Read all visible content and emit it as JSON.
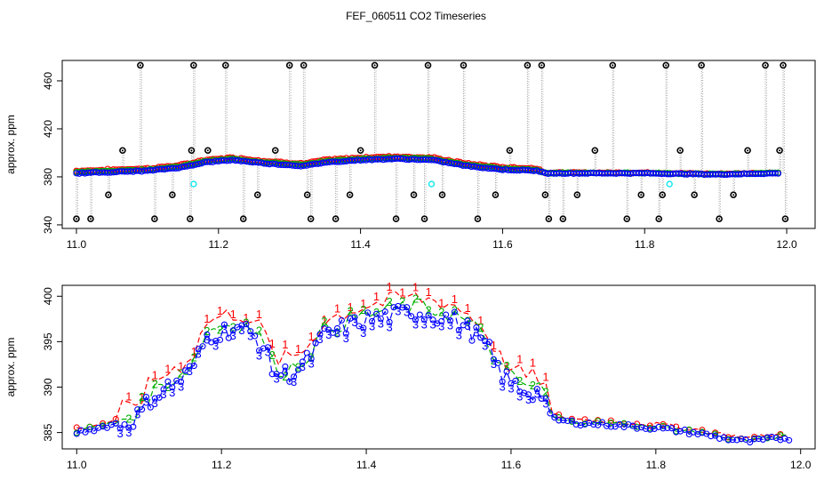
{
  "page_title": "FEF_060511  CO2 Timeseries",
  "chart_data": [
    {
      "type": "scatter",
      "panel": "top",
      "title": "FEF_060511  CO2 Timeseries",
      "xlabel": "",
      "ylabel": "approx. ppm",
      "xlim": [
        10.98,
        12.04
      ],
      "ylim": [
        337,
        477
      ],
      "x_ticks": [
        "11.0",
        "11.2",
        "11.4",
        "11.6",
        "11.8",
        "12.0"
      ],
      "y_ticks": [
        "340",
        "380",
        "420",
        "460"
      ],
      "grid": false,
      "colors": {
        "series1": "#ff0000",
        "series2": "#00b000",
        "series3": "#0000ff",
        "calibration": "#00e5ee",
        "spike": "#000000",
        "spike_line": "#9a9a9a"
      },
      "spikes": {
        "x": [
          11.0,
          11.02,
          11.045,
          11.065,
          11.09,
          11.11,
          11.135,
          11.16,
          11.162,
          11.165,
          11.185,
          11.21,
          11.235,
          11.255,
          11.28,
          11.3,
          11.32,
          11.325,
          11.33,
          11.365,
          11.385,
          11.4,
          11.42,
          11.45,
          11.475,
          11.49,
          11.495,
          11.515,
          11.545,
          11.565,
          11.59,
          11.61,
          11.635,
          11.655,
          11.66,
          11.665,
          11.685,
          11.705,
          11.73,
          11.755,
          11.775,
          11.795,
          11.82,
          11.825,
          11.83,
          11.85,
          11.87,
          11.88,
          11.905,
          11.925,
          11.945,
          11.97,
          11.99,
          11.995,
          11.998
        ],
        "y": [
          345,
          345,
          365,
          402,
          473,
          345,
          365,
          345,
          402,
          473,
          402,
          473,
          345,
          365,
          402,
          473,
          473,
          365,
          345,
          345,
          365,
          402,
          473,
          345,
          365,
          345,
          473,
          365,
          473,
          345,
          365,
          402,
          473,
          473,
          365,
          345,
          345,
          365,
          402,
          473,
          345,
          365,
          345,
          365,
          473,
          402,
          365,
          473,
          345,
          365,
          402,
          473,
          402,
          473,
          345
        ]
      },
      "calibration_points": {
        "x": [
          11.165,
          11.5,
          11.835
        ],
        "y": [
          374,
          374,
          374
        ]
      }
    },
    {
      "type": "line",
      "panel": "bottom",
      "title": "",
      "xlabel": "",
      "ylabel": "approx. ppm",
      "xlim": [
        10.98,
        12.02
      ],
      "ylim": [
        383.2,
        401.2
      ],
      "x_ticks": [
        "11.0",
        "11.2",
        "11.4",
        "11.6",
        "11.8",
        "12.0"
      ],
      "y_ticks": [
        "385",
        "390",
        "395",
        "400"
      ],
      "grid": false,
      "series": [
        {
          "name": "1",
          "color": "#ff0000",
          "offset": 1.6
        },
        {
          "name": "2",
          "color": "#00b000",
          "offset": 0.6
        },
        {
          "name": "3",
          "color": "#0000ff",
          "offset": 0.0
        }
      ],
      "x": [
        11.0,
        11.03,
        11.05,
        11.07,
        11.08,
        11.09,
        11.1,
        11.12,
        11.14,
        11.16,
        11.18,
        11.2,
        11.22,
        11.24,
        11.26,
        11.27,
        11.28,
        11.3,
        11.32,
        11.34,
        11.37,
        11.4,
        11.43,
        11.46,
        11.49,
        11.52,
        11.55,
        11.57,
        11.585,
        11.6,
        11.62,
        11.645,
        11.655,
        11.67,
        11.7,
        11.73,
        11.76,
        11.8,
        11.83,
        11.86,
        11.9,
        11.93,
        11.96,
        11.99
      ],
      "base": [
        385.0,
        385.5,
        385.9,
        386.0,
        386.6,
        387.3,
        388.6,
        389.8,
        390.6,
        392.0,
        395.6,
        396.1,
        396.6,
        396.0,
        394.3,
        392.0,
        391.4,
        391.6,
        393.0,
        395.6,
        396.6,
        397.4,
        397.8,
        398.3,
        398.0,
        397.5,
        395.9,
        394.0,
        391.6,
        390.4,
        389.6,
        389.3,
        386.6,
        386.3,
        386.0,
        385.9,
        385.7,
        385.5,
        385.2,
        384.9,
        384.3,
        384.0,
        384.3,
        384.4
      ]
    }
  ]
}
